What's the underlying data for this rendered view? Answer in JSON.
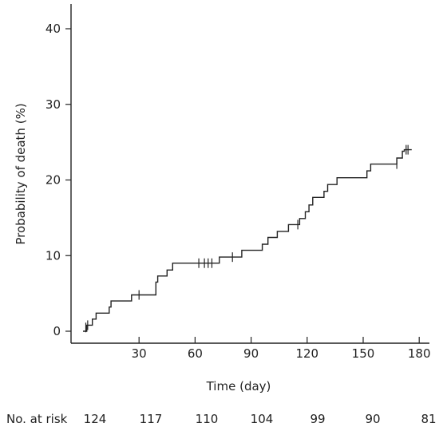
{
  "chart_data": {
    "type": "line",
    "subtype": "kaplan-meier-step",
    "title": "",
    "xlabel": "Time (day)",
    "ylabel": "Probability of death (%)",
    "xlim": [
      0,
      190
    ],
    "ylim": [
      0,
      44
    ],
    "xticks": [
      30,
      60,
      90,
      120,
      150,
      180
    ],
    "yticks": [
      0,
      10,
      20,
      30,
      40
    ],
    "grid": false,
    "series": [
      {
        "color": "#222222",
        "points": [
          [
            0,
            0
          ],
          [
            2,
            0
          ],
          [
            2,
            0.8
          ],
          [
            5,
            0.8
          ],
          [
            5,
            1.6
          ],
          [
            7,
            1.6
          ],
          [
            7,
            2.4
          ],
          [
            14,
            2.4
          ],
          [
            14,
            3.2
          ],
          [
            15,
            3.2
          ],
          [
            15,
            4.0
          ],
          [
            26,
            4.0
          ],
          [
            26,
            4.8
          ],
          [
            39,
            4.8
          ],
          [
            39,
            6.5
          ],
          [
            40,
            6.5
          ],
          [
            40,
            7.3
          ],
          [
            45,
            7.3
          ],
          [
            45,
            8.1
          ],
          [
            48,
            8.1
          ],
          [
            48,
            9.0
          ],
          [
            65,
            9.0
          ],
          [
            65,
            9.0
          ],
          [
            73,
            9.0
          ],
          [
            73,
            9.8
          ],
          [
            85,
            9.8
          ],
          [
            85,
            10.7
          ],
          [
            96,
            10.7
          ],
          [
            96,
            11.5
          ],
          [
            99,
            11.5
          ],
          [
            99,
            12.4
          ],
          [
            104,
            12.4
          ],
          [
            104,
            13.2
          ],
          [
            110,
            13.2
          ],
          [
            110,
            14.1
          ],
          [
            116,
            14.1
          ],
          [
            116,
            14.9
          ],
          [
            119,
            14.9
          ],
          [
            119,
            15.8
          ],
          [
            121,
            15.8
          ],
          [
            121,
            16.7
          ],
          [
            123,
            16.7
          ],
          [
            123,
            17.7
          ],
          [
            129,
            17.7
          ],
          [
            129,
            18.5
          ],
          [
            131,
            18.5
          ],
          [
            131,
            19.4
          ],
          [
            136,
            19.4
          ],
          [
            136,
            20.3
          ],
          [
            152,
            20.3
          ],
          [
            152,
            21.2
          ],
          [
            154,
            21.2
          ],
          [
            154,
            22.1
          ],
          [
            168,
            22.1
          ],
          [
            168,
            22.9
          ],
          [
            171,
            22.9
          ],
          [
            171,
            23.8
          ],
          [
            172,
            23.8
          ],
          [
            172,
            24.0
          ],
          [
            176,
            24.0
          ]
        ],
        "censored": [
          [
            1.5,
            0.5
          ],
          [
            2.5,
            0.8
          ],
          [
            30,
            4.8
          ],
          [
            62,
            9.0
          ],
          [
            65,
            9.0
          ],
          [
            67,
            9.0
          ],
          [
            69,
            9.0
          ],
          [
            80,
            9.8
          ],
          [
            115,
            14.1
          ],
          [
            168,
            22.1
          ],
          [
            173,
            24.0
          ],
          [
            174,
            24.0
          ]
        ]
      }
    ],
    "risk_table": {
      "label": "No. at risk",
      "times": [
        0,
        30,
        60,
        90,
        120,
        150,
        180
      ],
      "values": [
        "124",
        "117",
        "110",
        "104",
        "99",
        "90",
        "81"
      ]
    }
  }
}
